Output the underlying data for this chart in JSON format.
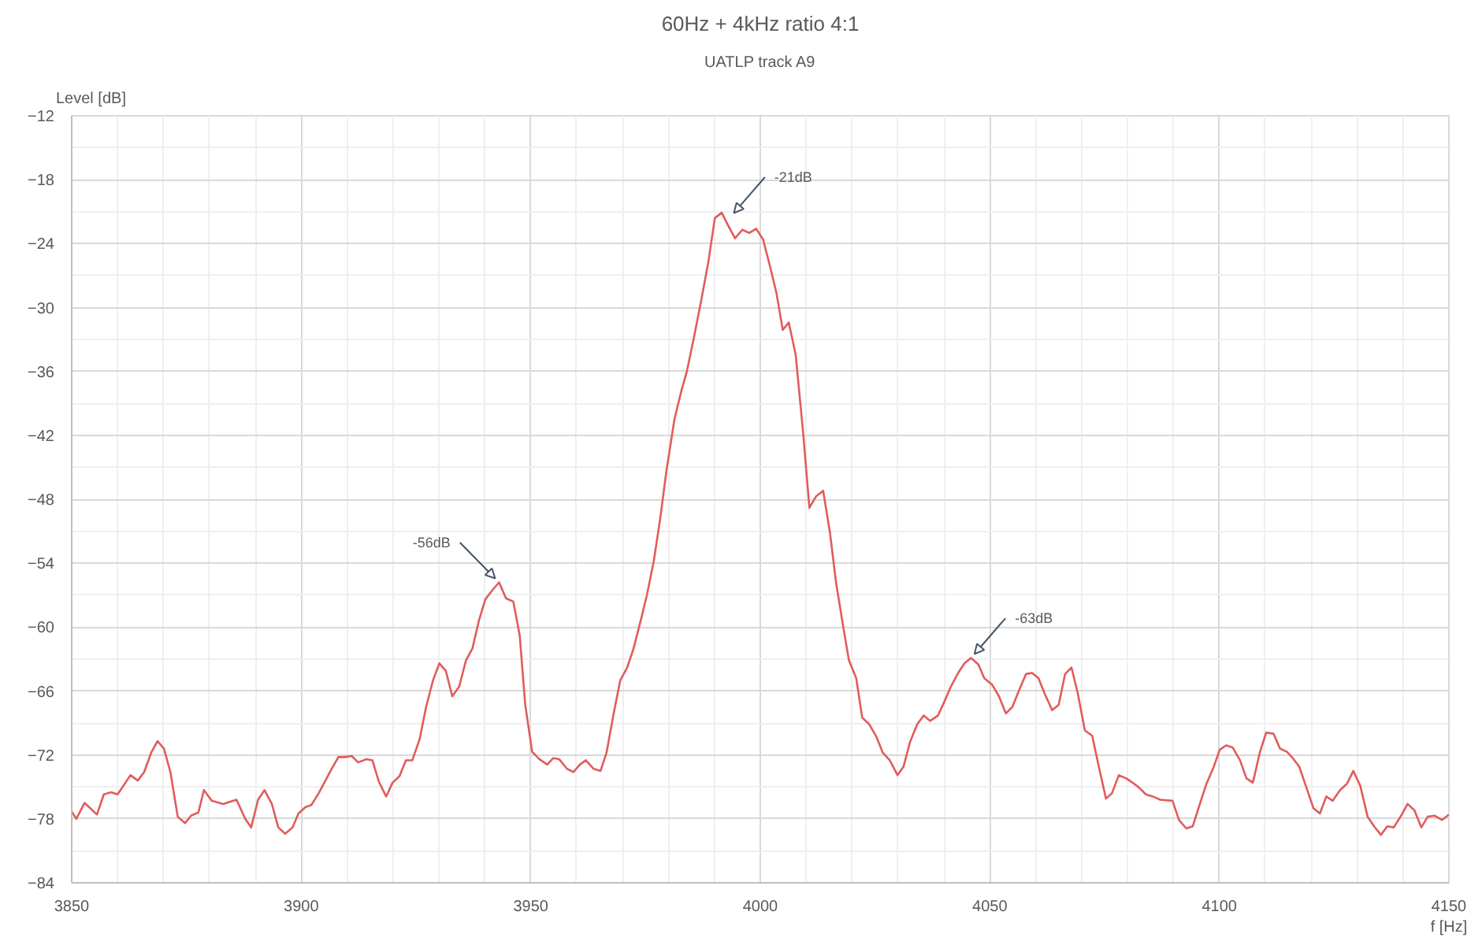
{
  "chart_data": {
    "type": "line",
    "title": "60Hz + 4kHz ratio 4:1",
    "subtitle": "UATLP track A9",
    "xlabel": "f [Hz]",
    "ylabel": "Level [dB]",
    "xlim": [
      3850,
      4150
    ],
    "xticks": [
      3850,
      3900,
      3950,
      4000,
      4050,
      4100,
      4150
    ],
    "ylim": [
      -84,
      -12
    ],
    "yticks": [
      -84,
      -78,
      -72,
      -66,
      -60,
      -54,
      -48,
      -42,
      -36,
      -30,
      -24,
      -18,
      -12
    ],
    "grid": true,
    "marker": "none",
    "line_style": "solid",
    "annotations": [
      {
        "text": "-56dB",
        "x": 3943.1,
        "y": -55.8
      },
      {
        "text": "-21dB",
        "x": 3993.5,
        "y": -21.5
      },
      {
        "text": "-63dB",
        "x": 4045.9,
        "y": -62.9
      }
    ],
    "series": [
      {
        "color": "#e05c5c",
        "x": [
          3850,
          3851,
          3852.8,
          3855.5,
          3857,
          3858.6,
          3860,
          3862.8,
          3864.4,
          3865.8,
          3867.3,
          3868.7,
          3870.1,
          3871.5,
          3873.1,
          3874.7,
          3876,
          3877.6,
          3878.8,
          3880.5,
          3883,
          3885.9,
          3887.8,
          3889.1,
          3890.6,
          3892,
          3893.6,
          3895,
          3896.5,
          3898.1,
          3899.4,
          3900.9,
          3902.2,
          3903.8,
          3906.5,
          3908.1,
          3909.6,
          3911,
          3912.4,
          3914.2,
          3915.5,
          3916.9,
          3918.5,
          3919.9,
          3921.4,
          3922.8,
          3924.2,
          3925.8,
          3927.2,
          3928.7,
          3930.1,
          3931.5,
          3932.9,
          3934.4,
          3935.9,
          3937.3,
          3938.7,
          3940.1,
          3941.7,
          3943.1,
          3944.6,
          3946.2,
          3947.6,
          3948.8,
          3950.3,
          3951.9,
          3953.6,
          3954.9,
          3956.2,
          3957.9,
          3959.3,
          3960.7,
          3962,
          3963.7,
          3965.2,
          3966.5,
          3968.2,
          3969.5,
          3971,
          3972.4,
          3974,
          3975.3,
          3976.8,
          3978.2,
          3979.6,
          3981.3,
          3982.7,
          3984,
          3985.6,
          3987.1,
          3988.7,
          3990.1,
          3991.6,
          3993,
          3994.5,
          3996.1,
          3997.6,
          3999.1,
          4000.6,
          4002.1,
          4003.5,
          4004.9,
          4006.2,
          4007.7,
          4009.3,
          4010.7,
          4012.2,
          4013.7,
          4015.2,
          4016.5,
          4018,
          4019.3,
          4020.9,
          4022.2,
          4023.7,
          4025.3,
          4026.7,
          4028.2,
          4029.9,
          4031.2,
          4032.6,
          4034.2,
          4035.6,
          4037,
          4038.7,
          4040,
          4041.5,
          4043.1,
          4044.5,
          4045.9,
          4047.5,
          4048.8,
          4050.5,
          4052,
          4053.5,
          4054.9,
          4056.5,
          4057.9,
          4059.2,
          4060.6,
          4062,
          4063.6,
          4065,
          4066.4,
          4067.8,
          4069.2,
          4070.7,
          4072.3,
          4073.8,
          4075.3,
          4076.6,
          4078.1,
          4079.7,
          4081.1,
          4082.6,
          4084,
          4085.5,
          4087.1,
          4089.8,
          4091.2,
          4092.8,
          4094.2,
          4095.6,
          4097.2,
          4098.7,
          4100.1,
          4101.5,
          4102.9,
          4104.5,
          4105.9,
          4107.3,
          4108.8,
          4110.2,
          4111.8,
          4113.2,
          4114.7,
          4116,
          4117.4,
          4119,
          4120.5,
          4121.9,
          4123.3,
          4124.7,
          4126.3,
          4127.8,
          4129.2,
          4130.7,
          4132.3,
          4133.7,
          4135.2,
          4136.6,
          4138,
          4139.6,
          4141,
          4142.5,
          4144,
          4145.4,
          4146.9,
          4148.5,
          4150
        ],
        "values": [
          -77.3,
          -78.0,
          -76.5,
          -77.6,
          -75.7,
          -75.5,
          -75.7,
          -73.9,
          -74.4,
          -73.6,
          -71.8,
          -70.7,
          -71.4,
          -73.6,
          -77.8,
          -78.4,
          -77.7,
          -77.4,
          -75.3,
          -76.3,
          -76.6,
          -76.2,
          -78.0,
          -78.8,
          -76.2,
          -75.3,
          -76.6,
          -78.8,
          -79.4,
          -78.8,
          -77.5,
          -76.9,
          -76.7,
          -75.6,
          -73.4,
          -72.2,
          -72.2,
          -72.1,
          -72.7,
          -72.4,
          -72.5,
          -74.5,
          -75.9,
          -74.6,
          -74.0,
          -72.5,
          -72.5,
          -70.5,
          -67.5,
          -65.0,
          -63.4,
          -64.1,
          -66.5,
          -65.6,
          -63.1,
          -62.0,
          -59.4,
          -57.4,
          -56.5,
          -55.8,
          -57.3,
          -57.6,
          -60.8,
          -67.3,
          -71.7,
          -72.4,
          -72.9,
          -72.3,
          -72.4,
          -73.3,
          -73.6,
          -72.9,
          -72.5,
          -73.3,
          -73.5,
          -71.8,
          -67.8,
          -65.0,
          -63.8,
          -62.0,
          -59.3,
          -57.0,
          -53.8,
          -49.8,
          -45.2,
          -40.5,
          -38.0,
          -36.0,
          -32.7,
          -29.4,
          -25.7,
          -21.6,
          -21.1,
          -22.3,
          -23.5,
          -22.7,
          -23.0,
          -22.6,
          -23.6,
          -26.1,
          -28.6,
          -32.1,
          -31.4,
          -34.4,
          -41.6,
          -48.8,
          -47.7,
          -47.2,
          -51.2,
          -55.8,
          -59.8,
          -63.1,
          -64.8,
          -68.5,
          -69.1,
          -70.3,
          -71.8,
          -72.5,
          -73.9,
          -73.1,
          -70.8,
          -69.1,
          -68.3,
          -68.8,
          -68.3,
          -67.1,
          -65.6,
          -64.3,
          -63.4,
          -62.9,
          -63.5,
          -64.8,
          -65.4,
          -66.5,
          -68.1,
          -67.5,
          -65.8,
          -64.4,
          -64.3,
          -64.8,
          -66.3,
          -67.8,
          -67.3,
          -64.4,
          -63.8,
          -66.3,
          -69.7,
          -70.2,
          -73.2,
          -76.1,
          -75.6,
          -73.9,
          -74.2,
          -74.6,
          -75.1,
          -75.7,
          -75.9,
          -76.2,
          -76.3,
          -78.1,
          -78.9,
          -78.7,
          -76.8,
          -74.7,
          -73.2,
          -71.5,
          -71.1,
          -71.3,
          -72.5,
          -74.2,
          -74.6,
          -71.8,
          -69.9,
          -70.0,
          -71.4,
          -71.7,
          -72.3,
          -73.1,
          -75.1,
          -77.0,
          -77.5,
          -75.9,
          -76.3,
          -75.3,
          -74.7,
          -73.5,
          -74.9,
          -77.8,
          -78.7,
          -79.5,
          -78.7,
          -78.8,
          -77.7,
          -76.6,
          -77.2,
          -78.8,
          -77.8,
          -77.7,
          -78.1,
          -77.6
        ]
      }
    ]
  }
}
